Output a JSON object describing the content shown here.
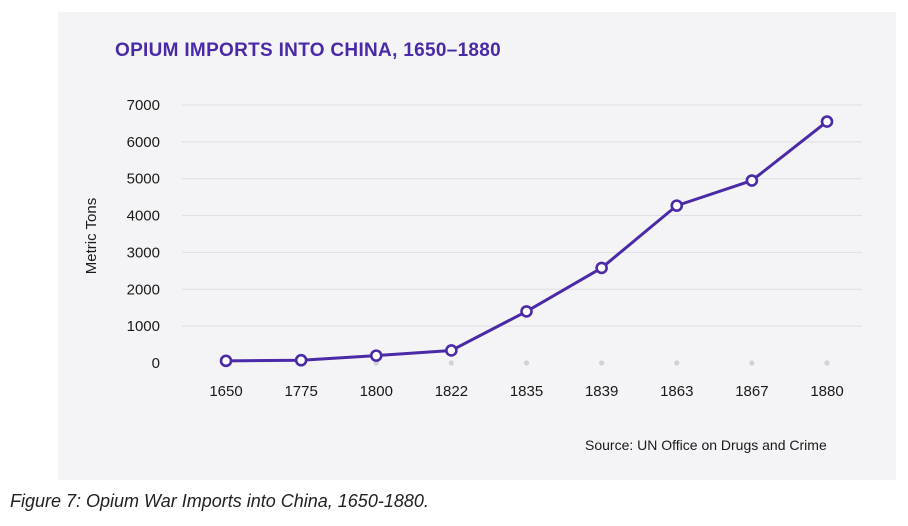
{
  "chart_data": {
    "type": "line",
    "title": "OPIUM IMPORTS INTO CHINA, 1650–1880",
    "ylabel": "Metric Tons",
    "xlabel": "",
    "categories": [
      "1650",
      "1775",
      "1800",
      "1822",
      "1835",
      "1839",
      "1863",
      "1867",
      "1880"
    ],
    "series": [
      {
        "values": [
          58,
          75,
          200,
          340,
          1400,
          2580,
          4270,
          4950,
          6550
        ]
      }
    ],
    "ylim": [
      0,
      7000
    ],
    "yticks": [
      "0",
      "1000",
      "2000",
      "3000",
      "4000",
      "5000",
      "6000",
      "7000"
    ],
    "grid": true,
    "source": "Source: UN Office on Drugs and Crime"
  },
  "caption": "Figure 7: Opium War Imports into China, 1650-1880.",
  "colors": {
    "title": "#4b2aa8",
    "line": "#4b2aa8",
    "marker_fill": "#ffffff",
    "grid": "#dedee4",
    "panel": "#f4f4f6",
    "baseline_dot": "#d2d2d6"
  }
}
